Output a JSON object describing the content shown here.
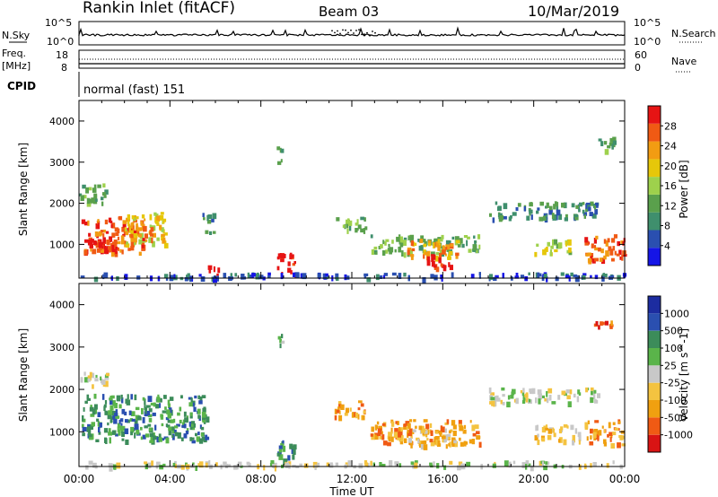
{
  "header": {
    "station": "Rankin Inlet (fitACF)",
    "beam": "Beam 03",
    "date": "10/Mar/2019"
  },
  "strips": {
    "nsky_label": "N.Sky",
    "nsky_ticks": [
      "10^5",
      "10^0"
    ],
    "nsearch_label": "N.Search",
    "nsearch_ticks": [
      "10^5",
      "10^0"
    ],
    "freq_label_top": "Freq.",
    "freq_label_bottom": "[MHz]",
    "freq_ticks": [
      "18",
      "8"
    ],
    "nave_label": "Nave",
    "nave_ticks": [
      "60",
      "0"
    ],
    "cpid_label": "CPID",
    "cpid_text": "normal (fast) 151"
  },
  "colors": {
    "power": [
      "#1515e6",
      "#2a4fb0",
      "#3f8f6d",
      "#5aa04c",
      "#9ed14c",
      "#e6c70a",
      "#f29c12",
      "#f05a14",
      "#e61414"
    ],
    "velocity": [
      "#d91414",
      "#f05a14",
      "#f0a010",
      "#f4c340",
      "#c8c8c8",
      "#5ab44a",
      "#3c8c5a",
      "#2a4fb0",
      "#1c2ca0"
    ]
  },
  "chart_data": [
    {
      "type": "heatmap",
      "title": "Power",
      "xlabel": "",
      "ylabel": "Slant Range [km]",
      "colorbar_label": "Power [dB]",
      "colorbar_ticks": [
        "28",
        "24",
        "20",
        "16",
        "12",
        "8",
        "4"
      ],
      "y_ticks": [
        "4000",
        "3000",
        "2000",
        "1000"
      ],
      "ylim": [
        180,
        4500
      ],
      "xlim": [
        "00:00",
        "24:00"
      ],
      "regions": [
        {
          "t": [
            0.1,
            2.8
          ],
          "r": [
            800,
            1700
          ],
          "level": 7
        },
        {
          "t": [
            0.2,
            1.6
          ],
          "r": [
            850,
            1250
          ],
          "level": 8
        },
        {
          "t": [
            2.0,
            3.8
          ],
          "r": [
            1000,
            1800
          ],
          "level": 5
        },
        {
          "t": [
            2.2,
            3.2
          ],
          "r": [
            1150,
            1450
          ],
          "level": 7
        },
        {
          "t": [
            0.0,
            1.2
          ],
          "r": [
            2000,
            2500
          ],
          "level": 3
        },
        {
          "t": [
            5.4,
            5.9
          ],
          "r": [
            1300,
            1800
          ],
          "level": 2
        },
        {
          "t": [
            8.6,
            8.9
          ],
          "r": [
            3000,
            3400
          ],
          "level": 3
        },
        {
          "t": [
            8.7,
            9.6
          ],
          "r": [
            280,
            800
          ],
          "level": 8
        },
        {
          "t": [
            5.6,
            6.1
          ],
          "r": [
            250,
            500
          ],
          "level": 8
        },
        {
          "t": [
            11.2,
            12.6
          ],
          "r": [
            1350,
            1700
          ],
          "level": 3
        },
        {
          "t": [
            12.8,
            17.6
          ],
          "r": [
            800,
            1250
          ],
          "level": 3
        },
        {
          "t": [
            14.4,
            16.6
          ],
          "r": [
            700,
            1150
          ],
          "level": 6
        },
        {
          "t": [
            15.3,
            16.3
          ],
          "r": [
            400,
            800
          ],
          "level": 8
        },
        {
          "t": [
            18.0,
            22.8
          ],
          "r": [
            1650,
            2050
          ],
          "level": 2
        },
        {
          "t": [
            20.0,
            21.6
          ],
          "r": [
            800,
            1150
          ],
          "level": 4
        },
        {
          "t": [
            22.2,
            24.0
          ],
          "r": [
            650,
            1250
          ],
          "level": 7
        },
        {
          "t": [
            22.8,
            23.6
          ],
          "r": [
            3300,
            3650
          ],
          "level": 3
        },
        {
          "t": [
            0.0,
            24.0
          ],
          "r": [
            200,
            330
          ],
          "level": 1
        }
      ]
    },
    {
      "type": "heatmap",
      "title": "Velocity",
      "xlabel": "Time UT",
      "ylabel": "Slant Range [km]",
      "colorbar_label": "Velocity [m s^-1]",
      "colorbar_ticks": [
        "1000",
        "500",
        "100",
        "25",
        "-25",
        "-100",
        "-500",
        "-1000"
      ],
      "y_ticks": [
        "4000",
        "3000",
        "2000",
        "1000"
      ],
      "ylim": [
        180,
        4500
      ],
      "xlim": [
        "00:00",
        "24:00"
      ],
      "x_ticks": [
        "00:00",
        "04:00",
        "08:00",
        "12:00",
        "16:00",
        "20:00",
        "00:00"
      ],
      "regions": [
        {
          "t": [
            0.1,
            5.6
          ],
          "r": [
            800,
            1900
          ],
          "level": 6
        },
        {
          "t": [
            0.0,
            1.2
          ],
          "r": [
            2100,
            2500
          ],
          "level": 4
        },
        {
          "t": [
            8.6,
            8.9
          ],
          "r": [
            3000,
            3400
          ],
          "level": 5
        },
        {
          "t": [
            8.7,
            9.6
          ],
          "r": [
            300,
            800
          ],
          "level": 6
        },
        {
          "t": [
            11.2,
            12.6
          ],
          "r": [
            1350,
            1750
          ],
          "level": 2
        },
        {
          "t": [
            12.8,
            17.6
          ],
          "r": [
            750,
            1300
          ],
          "level": 2
        },
        {
          "t": [
            14.4,
            16.6
          ],
          "r": [
            700,
            1150
          ],
          "level": 3
        },
        {
          "t": [
            18.0,
            22.8
          ],
          "r": [
            1700,
            2050
          ],
          "level": 4
        },
        {
          "t": [
            20.0,
            22.0
          ],
          "r": [
            800,
            1200
          ],
          "level": 3
        },
        {
          "t": [
            22.2,
            24.0
          ],
          "r": [
            700,
            1300
          ],
          "level": 2
        },
        {
          "t": [
            22.6,
            23.4
          ],
          "r": [
            3400,
            3650
          ],
          "level": 1
        },
        {
          "t": [
            0.0,
            24.0
          ],
          "r": [
            200,
            330
          ],
          "level": 4
        }
      ]
    }
  ]
}
